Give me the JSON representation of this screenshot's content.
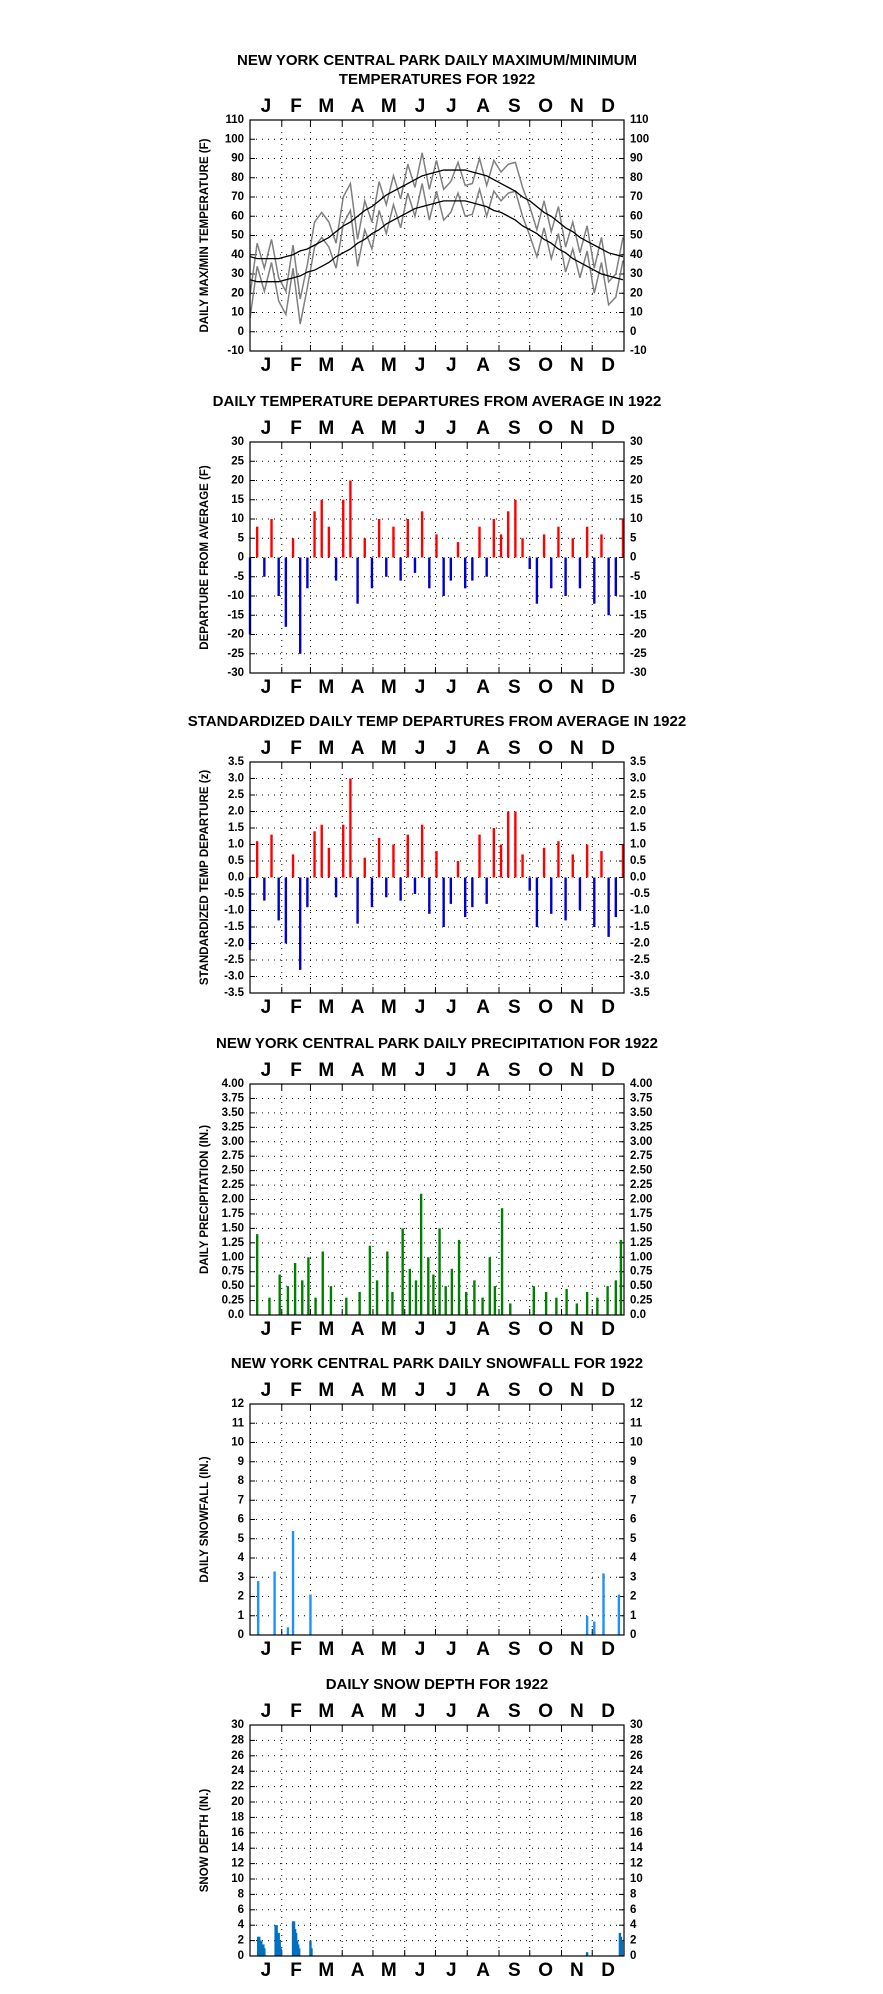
{
  "chart_data": [
    {
      "type": "line",
      "title": [
        "NEW YORK CENTRAL PARK DAILY MAXIMUM/MINIMUM",
        "TEMPERATURES FOR 1922"
      ],
      "ylabel": "DAILY MAX/MIN TEMPERATURE (F)",
      "months": [
        "J",
        "F",
        "M",
        "A",
        "M",
        "J",
        "J",
        "A",
        "S",
        "O",
        "N",
        "D"
      ],
      "xlim": [
        1,
        366
      ],
      "xticks": [
        1,
        32,
        60,
        91,
        121,
        152,
        182,
        213,
        244,
        274,
        305,
        335,
        366
      ],
      "ylim": [
        -10,
        110
      ],
      "yticks": [
        -10,
        0,
        10,
        20,
        30,
        40,
        50,
        60,
        70,
        80,
        90,
        100,
        110
      ],
      "grid": true,
      "x": [
        1,
        8,
        15,
        22,
        29,
        36,
        43,
        50,
        57,
        64,
        71,
        78,
        85,
        92,
        99,
        106,
        113,
        120,
        127,
        134,
        141,
        148,
        155,
        162,
        169,
        176,
        183,
        190,
        197,
        204,
        211,
        218,
        225,
        232,
        239,
        246,
        253,
        260,
        267,
        274,
        281,
        288,
        295,
        302,
        309,
        316,
        323,
        330,
        337,
        344,
        351,
        358,
        365
      ],
      "series": [
        {
          "color": "#808080",
          "values": [
            19,
            46,
            33,
            48,
            28,
            21,
            45,
            17,
            35,
            57,
            62,
            57,
            46,
            70,
            77,
            48,
            68,
            57,
            78,
            66,
            81,
            69,
            87,
            75,
            93,
            74,
            89,
            74,
            78,
            88,
            76,
            77,
            90,
            76,
            89,
            83,
            87,
            88,
            75,
            65,
            53,
            68,
            52,
            65,
            44,
            57,
            41,
            55,
            33,
            49,
            26,
            30,
            49
          ]
        },
        {
          "color": "#808080",
          "values": [
            7,
            34,
            21,
            36,
            16,
            9,
            33,
            4,
            23,
            44,
            49,
            44,
            33,
            56,
            63,
            34,
            53,
            43,
            63,
            51,
            66,
            54,
            72,
            60,
            77,
            58,
            73,
            58,
            62,
            72,
            60,
            61,
            74,
            60,
            73,
            68,
            72,
            73,
            60,
            50,
            39,
            54,
            38,
            51,
            31,
            43,
            28,
            42,
            20,
            36,
            14,
            18,
            37
          ]
        },
        {
          "color": "#000000",
          "values": [
            39,
            38,
            38,
            38,
            38,
            39,
            40,
            42,
            43,
            45,
            47,
            49,
            52,
            55,
            57,
            60,
            63,
            65,
            68,
            71,
            73,
            75,
            77,
            79,
            81,
            82,
            83,
            84,
            84,
            84,
            84,
            83,
            82,
            81,
            79,
            77,
            75,
            73,
            70,
            68,
            65,
            62,
            60,
            57,
            54,
            52,
            49,
            47,
            45,
            43,
            41,
            40,
            39
          ]
        },
        {
          "color": "#000000",
          "values": [
            27,
            26,
            26,
            26,
            26,
            27,
            28,
            29,
            31,
            32,
            34,
            36,
            39,
            41,
            43,
            46,
            48,
            51,
            53,
            56,
            58,
            60,
            62,
            64,
            65,
            66,
            67,
            68,
            68,
            68,
            68,
            67,
            66,
            65,
            63,
            62,
            60,
            58,
            55,
            53,
            51,
            48,
            46,
            43,
            41,
            38,
            36,
            34,
            32,
            30,
            29,
            28,
            27
          ]
        }
      ]
    },
    {
      "type": "bar",
      "title": [
        "DAILY TEMPERATURE DEPARTURES FROM AVERAGE IN 1922"
      ],
      "ylabel": "DEPARTURE FROM AVERAGE (F)",
      "months": [
        "J",
        "F",
        "M",
        "A",
        "M",
        "J",
        "J",
        "A",
        "S",
        "O",
        "N",
        "D"
      ],
      "xlim": [
        1,
        366
      ],
      "xticks": [
        1,
        32,
        60,
        91,
        121,
        152,
        182,
        213,
        244,
        274,
        305,
        335,
        366
      ],
      "ylim": [
        -30,
        30
      ],
      "yticks": [
        -30,
        -25,
        -20,
        -15,
        -10,
        -5,
        0,
        5,
        10,
        15,
        20,
        25,
        30
      ],
      "grid": true,
      "positive_color": "#ff0000",
      "negative_color": "#0000cc",
      "x": [
        1,
        8,
        15,
        22,
        29,
        36,
        43,
        50,
        57,
        64,
        71,
        78,
        85,
        92,
        99,
        106,
        113,
        120,
        127,
        134,
        141,
        148,
        155,
        162,
        169,
        176,
        183,
        190,
        197,
        204,
        211,
        218,
        225,
        232,
        239,
        246,
        253,
        260,
        267,
        274,
        281,
        288,
        295,
        302,
        309,
        316,
        323,
        330,
        337,
        344,
        351,
        358,
        365
      ],
      "values": [
        -20,
        8,
        -5,
        10,
        -10,
        -18,
        5,
        -25,
        -8,
        12,
        15,
        8,
        -6,
        15,
        20,
        -12,
        5,
        -8,
        10,
        -5,
        8,
        -6,
        10,
        -4,
        12,
        -8,
        6,
        -10,
        -6,
        4,
        -8,
        -6,
        8,
        -5,
        10,
        6,
        12,
        15,
        5,
        -3,
        -12,
        6,
        -8,
        8,
        -10,
        5,
        -8,
        8,
        -12,
        6,
        -15,
        -10,
        10
      ]
    },
    {
      "type": "bar",
      "title": [
        "STANDARDIZED DAILY TEMP DEPARTURES FROM AVERAGE IN 1922"
      ],
      "ylabel": "STANDARDIZED TEMP DEPARTURE (z)",
      "months": [
        "J",
        "F",
        "M",
        "A",
        "M",
        "J",
        "J",
        "A",
        "S",
        "O",
        "N",
        "D"
      ],
      "xlim": [
        1,
        366
      ],
      "xticks": [
        1,
        32,
        60,
        91,
        121,
        152,
        182,
        213,
        244,
        274,
        305,
        335,
        366
      ],
      "ylim": [
        -3.5,
        3.5
      ],
      "yticks": [
        -3.5,
        {
          "value": -3,
          "label": "-3.0"
        },
        -2.5,
        {
          "value": -2,
          "label": "-2.0"
        },
        -1.5,
        {
          "value": -1,
          "label": "-1.0"
        },
        -0.5,
        {
          "value": 0,
          "label": "0.0"
        },
        0.5,
        {
          "value": 1,
          "label": "1.0"
        },
        1.5,
        {
          "value": 2,
          "label": "2.0"
        },
        2.5,
        {
          "value": 3,
          "label": "3.0"
        },
        3.5
      ],
      "grid": true,
      "positive_color": "#ff0000",
      "negative_color": "#0000cc",
      "x": [
        1,
        8,
        15,
        22,
        29,
        36,
        43,
        50,
        57,
        64,
        71,
        78,
        85,
        92,
        99,
        106,
        113,
        120,
        127,
        134,
        141,
        148,
        155,
        162,
        169,
        176,
        183,
        190,
        197,
        204,
        211,
        218,
        225,
        232,
        239,
        246,
        253,
        260,
        267,
        274,
        281,
        288,
        295,
        302,
        309,
        316,
        323,
        330,
        337,
        344,
        351,
        358,
        365
      ],
      "values": [
        -2.2,
        1.1,
        -0.7,
        1.3,
        -1.3,
        -2.0,
        0.7,
        -2.8,
        -0.9,
        1.4,
        1.6,
        0.9,
        -0.6,
        1.6,
        3.0,
        -1.4,
        0.6,
        -0.9,
        1.2,
        -0.6,
        1.0,
        -0.7,
        1.3,
        -0.5,
        1.6,
        -1.1,
        0.8,
        -1.5,
        -0.8,
        0.5,
        -1.2,
        -0.9,
        1.3,
        -0.8,
        1.5,
        1.0,
        2.0,
        2.0,
        0.7,
        -0.4,
        -1.5,
        0.9,
        -1.1,
        1.1,
        -1.3,
        0.7,
        -1.0,
        1.0,
        -1.5,
        0.8,
        -1.8,
        -1.2,
        1.0
      ]
    },
    {
      "type": "bar",
      "title": [
        "NEW YORK CENTRAL PARK DAILY PRECIPITATION FOR 1922"
      ],
      "ylabel": "DAILY PRECIPITATION (IN.)",
      "months": [
        "J",
        "F",
        "M",
        "A",
        "M",
        "J",
        "J",
        "A",
        "S",
        "O",
        "N",
        "D"
      ],
      "xlim": [
        1,
        366
      ],
      "xticks": [
        1,
        32,
        60,
        91,
        121,
        152,
        182,
        213,
        244,
        274,
        305,
        335,
        366
      ],
      "ylim": [
        0,
        4
      ],
      "yticks": [
        {
          "value": 0,
          "label": "0.0"
        },
        0.25,
        {
          "value": 0.5,
          "label": "0.50"
        },
        0.75,
        {
          "value": 1,
          "label": "1.00"
        },
        1.25,
        {
          "value": 1.5,
          "label": "1.50"
        },
        1.75,
        {
          "value": 2,
          "label": "2.00"
        },
        2.25,
        {
          "value": 2.5,
          "label": "2.50"
        },
        2.75,
        {
          "value": 3,
          "label": "3.00"
        },
        3.25,
        {
          "value": 3.5,
          "label": "3.50"
        },
        3.75,
        {
          "value": 4,
          "label": "4.00"
        }
      ],
      "grid": true,
      "color": "#008000",
      "x": [
        8,
        20,
        30,
        38,
        45,
        52,
        58,
        65,
        72,
        80,
        95,
        108,
        118,
        125,
        135,
        140,
        150,
        157,
        163,
        168,
        175,
        180,
        186,
        192,
        198,
        205,
        212,
        220,
        228,
        235,
        240,
        247,
        255,
        278,
        290,
        300,
        310,
        320,
        330,
        340,
        350,
        358,
        363
      ],
      "values": [
        1.4,
        0.3,
        0.7,
        0.5,
        0.9,
        0.6,
        1.0,
        0.3,
        1.1,
        0.5,
        0.3,
        0.4,
        1.2,
        0.6,
        1.1,
        0.4,
        1.5,
        0.8,
        0.6,
        2.1,
        1.0,
        0.7,
        1.5,
        0.5,
        0.8,
        1.3,
        0.4,
        0.6,
        0.3,
        1.0,
        0.5,
        1.85,
        0.2,
        0.5,
        0.4,
        0.3,
        0.45,
        0.2,
        0.4,
        0.3,
        0.5,
        0.6,
        1.3
      ]
    },
    {
      "type": "bar",
      "title": [
        "NEW YORK CENTRAL PARK DAILY SNOWFALL FOR 1922"
      ],
      "ylabel": "DAILY SNOWFALL (IN.)",
      "months": [
        "J",
        "F",
        "M",
        "A",
        "M",
        "J",
        "J",
        "A",
        "S",
        "O",
        "N",
        "D"
      ],
      "xlim": [
        1,
        366
      ],
      "xticks": [
        1,
        32,
        60,
        91,
        121,
        152,
        182,
        213,
        244,
        274,
        305,
        335,
        366
      ],
      "ylim": [
        0,
        12
      ],
      "yticks": [
        0,
        1,
        2,
        3,
        4,
        5,
        6,
        7,
        8,
        9,
        10,
        11,
        12
      ],
      "grid": true,
      "color": "#1e90ff",
      "x": [
        9,
        25,
        38,
        43,
        60,
        330,
        337,
        346,
        361
      ],
      "values": [
        2.8,
        3.3,
        0.4,
        5.4,
        2.1,
        1.0,
        0.7,
        3.2,
        2.1
      ]
    },
    {
      "type": "bar",
      "title": [
        "DAILY SNOW DEPTH FOR 1922"
      ],
      "ylabel": "SNOW DEPTH (IN.)",
      "months": [
        "J",
        "F",
        "M",
        "A",
        "M",
        "J",
        "J",
        "A",
        "S",
        "O",
        "N",
        "D"
      ],
      "xlim": [
        1,
        366
      ],
      "xticks": [
        1,
        32,
        60,
        91,
        121,
        152,
        182,
        213,
        244,
        274,
        305,
        335,
        366
      ],
      "ylim": [
        0,
        30
      ],
      "yticks": [
        0,
        2,
        4,
        6,
        8,
        10,
        12,
        14,
        16,
        18,
        20,
        22,
        24,
        26,
        28,
        30
      ],
      "grid": true,
      "color": "#0070c0",
      "x": [
        9,
        10,
        11,
        12,
        13,
        14,
        15,
        26,
        27,
        28,
        29,
        30,
        31,
        43,
        44,
        45,
        46,
        47,
        48,
        49,
        60,
        61,
        330,
        362,
        363,
        364
      ],
      "values": [
        2.5,
        2.5,
        2,
        2,
        1.5,
        1.5,
        1,
        4,
        4,
        3,
        3,
        2,
        1,
        4.5,
        4.5,
        3.5,
        3,
        2,
        1.5,
        1,
        2,
        1,
        0.5,
        3,
        2.5,
        2
      ]
    }
  ]
}
